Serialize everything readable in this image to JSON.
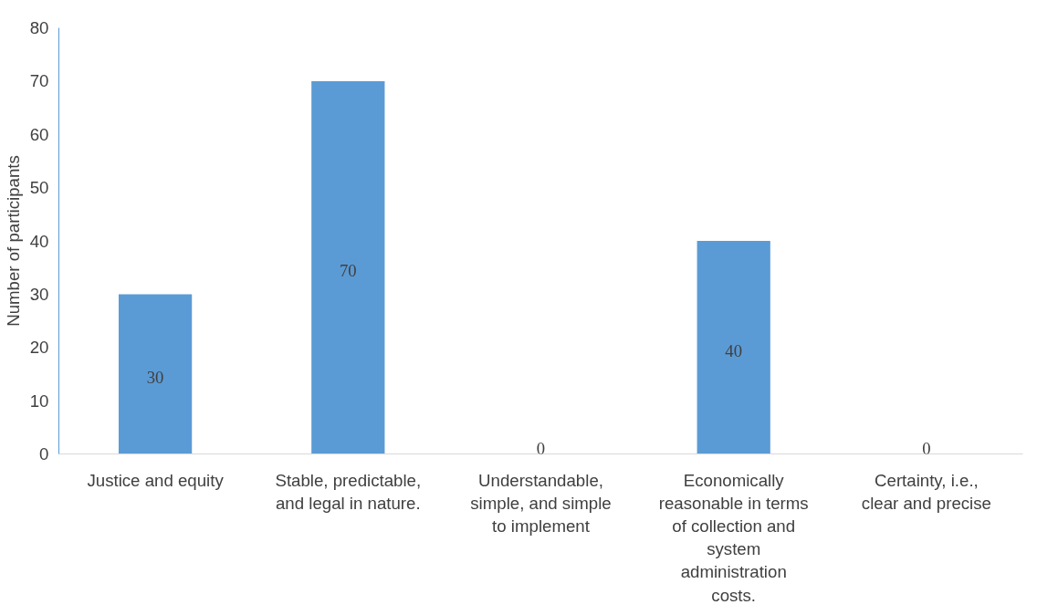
{
  "chart_data": {
    "type": "bar",
    "ylabel": "Number of participants",
    "categories": [
      "Justice and equity",
      "Stable, predictable, and legal in nature.",
      "Understandable, simple, and simple to implement",
      "Economically reasonable in terms of collection and system administration costs.",
      "Certainty, i.e., clear and precise"
    ],
    "values": [
      30,
      70,
      0,
      40,
      0
    ],
    "color": "#5b9bd5",
    "ylim": [
      0,
      80
    ],
    "yticks": [
      0,
      10,
      20,
      30,
      40,
      50,
      60,
      70,
      80
    ],
    "grid": false,
    "data_labels": true
  }
}
